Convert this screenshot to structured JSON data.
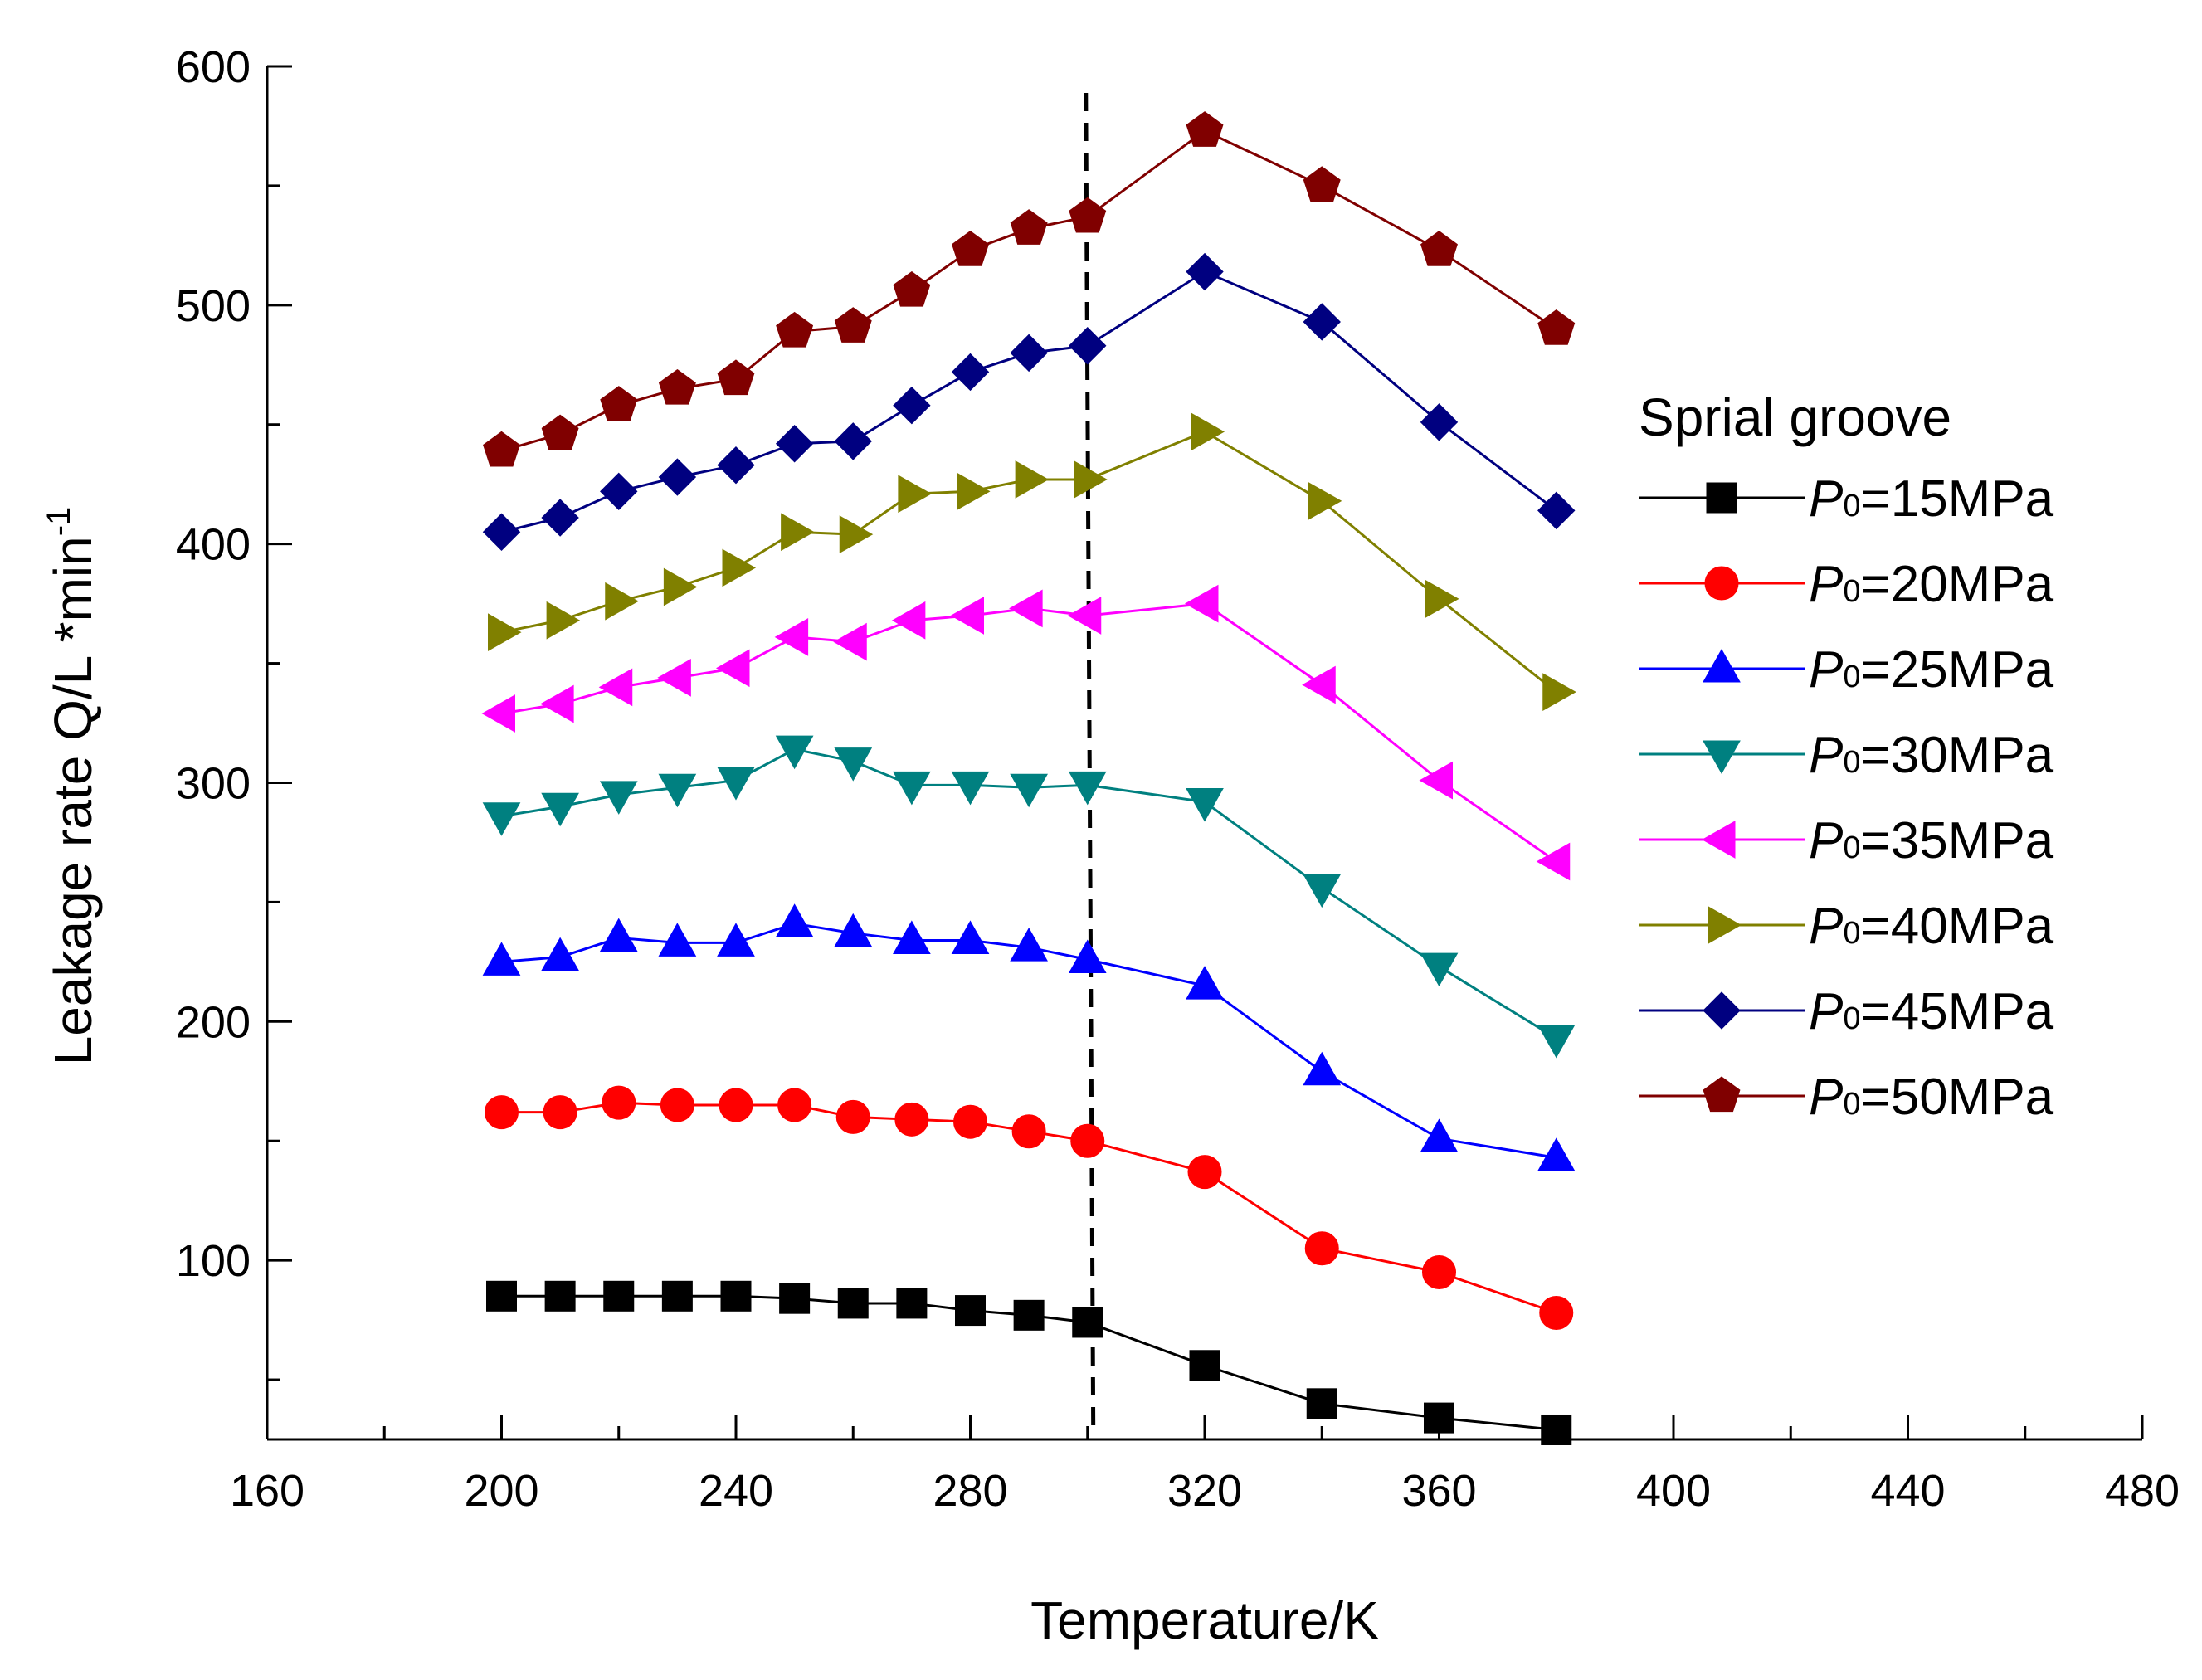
{
  "chart_data": {
    "type": "line",
    "xlabel": "Temperature/K",
    "ylabel": "Leakage rate Q/L *min",
    "ylabel_sup": "-1",
    "xlim": [
      160,
      480
    ],
    "ylim": [
      25,
      600
    ],
    "xticks": [
      160,
      200,
      240,
      280,
      320,
      360,
      400,
      440,
      480
    ],
    "yticks": [
      100,
      200,
      300,
      400,
      500,
      600
    ],
    "xminor_step": 20,
    "yminor_step": 50,
    "reference_line": {
      "x": 300,
      "style": "dashed",
      "color": "#000000"
    },
    "legend": {
      "title": "Sprial groove",
      "position": "right"
    },
    "x": [
      200,
      210,
      220,
      230,
      240,
      250,
      260,
      270,
      280,
      290,
      300,
      320,
      340,
      360,
      380
    ],
    "series": [
      {
        "name": "P0=15MPa",
        "name_prefix": "P",
        "name_sub": "0",
        "name_rest": "=15MPa",
        "color": "#000000",
        "marker": "square",
        "values": [
          85,
          85,
          85,
          85,
          85,
          84,
          82,
          82,
          79,
          77,
          74,
          56,
          40,
          34,
          29
        ]
      },
      {
        "name": "P0=20MPa",
        "name_prefix": "P",
        "name_sub": "0",
        "name_rest": "=20MPa",
        "color": "#ff0000",
        "marker": "circle",
        "values": [
          162,
          162,
          166,
          165,
          165,
          165,
          160,
          159,
          158,
          154,
          150,
          137,
          105,
          95,
          78
        ]
      },
      {
        "name": "P0=25MPa",
        "name_prefix": "P",
        "name_sub": "0",
        "name_rest": "=25MPa",
        "color": "#0000ff",
        "marker": "triangle-up",
        "values": [
          225,
          227,
          235,
          233,
          233,
          241,
          237,
          234,
          234,
          231,
          226,
          215,
          179,
          151,
          143
        ]
      },
      {
        "name": "P0=30MPa",
        "name_prefix": "P",
        "name_sub": "0",
        "name_rest": "=30MPa",
        "color": "#008080",
        "marker": "triangle-down",
        "values": [
          286,
          290,
          295,
          298,
          301,
          314,
          309,
          299,
          299,
          298,
          299,
          292,
          256,
          223,
          193
        ]
      },
      {
        "name": "P0=35MPa",
        "name_prefix": "P",
        "name_sub": "0",
        "name_rest": "=35MPa",
        "color": "#ff00ff",
        "marker": "triangle-left",
        "values": [
          329,
          333,
          340,
          344,
          348,
          361,
          359,
          368,
          370,
          373,
          370,
          375,
          341,
          301,
          267
        ]
      },
      {
        "name": "P0=40MPa",
        "name_prefix": "P",
        "name_sub": "0",
        "name_rest": "=40MPa",
        "color": "#808000",
        "marker": "triangle-right",
        "values": [
          363,
          368,
          376,
          382,
          390,
          405,
          404,
          421,
          422,
          427,
          427,
          447,
          418,
          377,
          338
        ]
      },
      {
        "name": "P0=45MPa",
        "name_prefix": "P",
        "name_sub": "0",
        "name_rest": "=45MPa",
        "color": "#000080",
        "marker": "diamond",
        "values": [
          405,
          411,
          422,
          428,
          433,
          442,
          443,
          458,
          472,
          480,
          483,
          514,
          493,
          451,
          414
        ]
      },
      {
        "name": "P0=50MPa",
        "name_prefix": "P",
        "name_sub": "0",
        "name_rest": "=50MPa",
        "color": "#800000",
        "marker": "pentagon",
        "values": [
          439,
          446,
          458,
          465,
          469,
          489,
          491,
          506,
          523,
          532,
          537,
          573,
          550,
          523,
          490
        ]
      }
    ]
  }
}
